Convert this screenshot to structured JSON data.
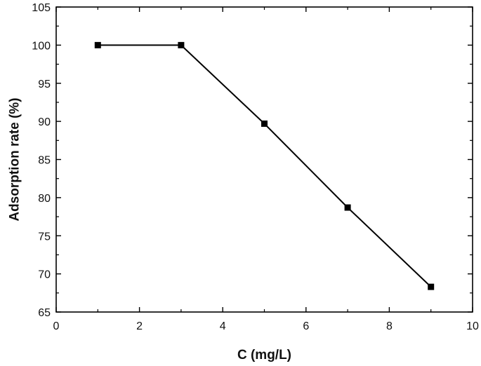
{
  "chart_data": {
    "type": "line",
    "title": "",
    "xlabel": "C (mg/L)",
    "ylabel": "Adsorption rate (%)",
    "xlim": [
      0,
      10
    ],
    "ylim": [
      65,
      105
    ],
    "xticks": [
      0,
      2,
      4,
      6,
      8,
      10
    ],
    "yticks": [
      65,
      70,
      75,
      80,
      85,
      90,
      95,
      100,
      105
    ],
    "grid": false,
    "legend": "none",
    "series": [
      {
        "x": [
          1,
          3,
          5,
          7,
          9
        ],
        "y": [
          100.0,
          100.0,
          89.7,
          78.7,
          68.3
        ],
        "marker": "square",
        "color": "#000000"
      }
    ]
  }
}
